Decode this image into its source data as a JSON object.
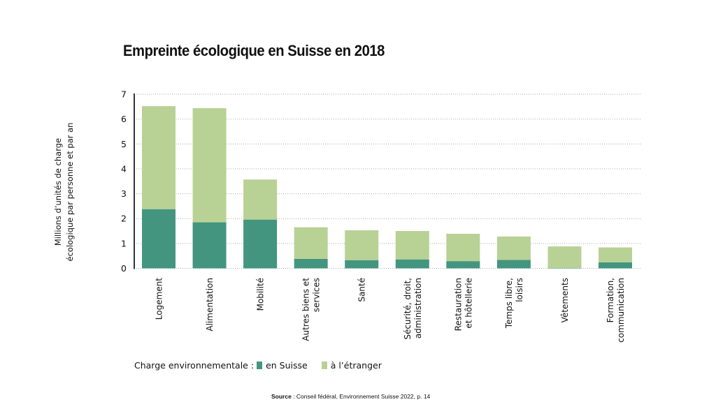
{
  "colors": {
    "en_suisse": "#43957f",
    "a_letranger": "#b8d195",
    "axis": "#333333",
    "grid": "#aaaaaa"
  },
  "chart_data": {
    "type": "bar",
    "stacked": true,
    "title": "Empreinte écologique en Suisse en 2018",
    "ylabel": "Millions d’unités de charge écologique par personne et par an",
    "ylabel_lines": [
      "Millions d’unités de charge",
      "écologique par personne et par an"
    ],
    "ylim": [
      0,
      7
    ],
    "yticks": [
      "0",
      "1",
      "2",
      "3",
      "4",
      "5",
      "6",
      "7"
    ],
    "grid": true,
    "categories": [
      [
        "Logement"
      ],
      [
        "Alimentation"
      ],
      [
        "Mobilité"
      ],
      [
        "Autres biens et",
        "services"
      ],
      [
        "Santé"
      ],
      [
        "Sécurité, droit,",
        "administration"
      ],
      [
        "Restauration",
        "et hôtellerie"
      ],
      [
        "Temps libre,",
        "loisirs"
      ],
      [
        "Vêtements"
      ],
      [
        "Formation,",
        "communication"
      ]
    ],
    "series": [
      {
        "name": "en Suisse",
        "values": [
          2.38,
          1.85,
          1.96,
          0.38,
          0.33,
          0.36,
          0.29,
          0.34,
          0.02,
          0.24
        ]
      },
      {
        "name": "à l’étranger",
        "values": [
          4.14,
          4.59,
          1.61,
          1.27,
          1.2,
          1.14,
          1.1,
          0.94,
          0.86,
          0.6
        ]
      }
    ],
    "legend": {
      "prefix": "Charge environnementale :",
      "position": "bottom-left"
    }
  },
  "source": {
    "label": "Source",
    "text": " : Conseil fédéral, Environnement Suisse 2022, p. 14"
  }
}
